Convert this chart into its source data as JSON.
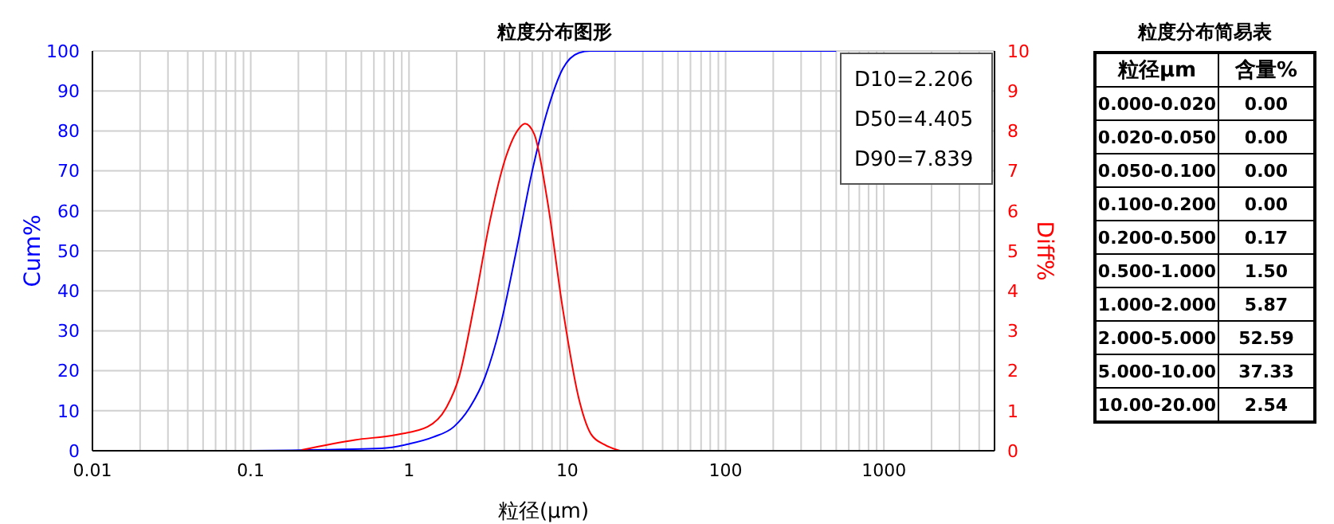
{
  "chart_data": [
    {
      "type": "line",
      "title": "粒度分布图形",
      "xlabel": "粒径(μm)",
      "ylabel": "Cum%",
      "y2label": "Diff%",
      "log": "x",
      "grid": true,
      "marker": "none",
      "line_style": "solid",
      "xlim": [
        0.01,
        5000
      ],
      "xticks": [
        0.01,
        {
          "value": 0.02,
          "label": null
        },
        {
          "value": 0.03,
          "label": null
        },
        {
          "value": 0.04,
          "label": null
        },
        {
          "value": 0.05,
          "label": null
        },
        {
          "value": 0.06,
          "label": null
        },
        {
          "value": 0.07,
          "label": null
        },
        {
          "value": 0.08,
          "label": null
        },
        {
          "value": 0.09,
          "label": null
        },
        0.1,
        {
          "value": 0.2,
          "label": null
        },
        {
          "value": 0.3,
          "label": null
        },
        {
          "value": 0.4,
          "label": null
        },
        {
          "value": 0.5,
          "label": null
        },
        {
          "value": 0.6,
          "label": null
        },
        {
          "value": 0.7,
          "label": null
        },
        {
          "value": 0.8,
          "label": null
        },
        {
          "value": 0.9,
          "label": null
        },
        1,
        {
          "value": 2,
          "label": null
        },
        {
          "value": 3,
          "label": null
        },
        {
          "value": 4,
          "label": null
        },
        {
          "value": 5,
          "label": null
        },
        {
          "value": 6,
          "label": null
        },
        {
          "value": 7,
          "label": null
        },
        {
          "value": 8,
          "label": null
        },
        {
          "value": 9,
          "label": null
        },
        10,
        {
          "value": 20,
          "label": null
        },
        {
          "value": 30,
          "label": null
        },
        {
          "value": 40,
          "label": null
        },
        {
          "value": 50,
          "label": null
        },
        {
          "value": 60,
          "label": null
        },
        {
          "value": 70,
          "label": null
        },
        {
          "value": 80,
          "label": null
        },
        {
          "value": 90,
          "label": null
        },
        100,
        {
          "value": 200,
          "label": null
        },
        {
          "value": 300,
          "label": null
        },
        {
          "value": 400,
          "label": null
        },
        {
          "value": 500,
          "label": null
        },
        {
          "value": 600,
          "label": null
        },
        {
          "value": 700,
          "label": null
        },
        {
          "value": 800,
          "label": null
        },
        {
          "value": 900,
          "label": null
        },
        1000,
        {
          "value": 2000,
          "label": null
        },
        {
          "value": 3000,
          "label": null
        },
        {
          "value": 4000,
          "label": null
        },
        {
          "value": 5000,
          "label": null
        }
      ],
      "ylim": [
        0,
        100
      ],
      "yticks": [
        0,
        10,
        20,
        30,
        40,
        50,
        60,
        70,
        80,
        90,
        100
      ],
      "y2lim": [
        0,
        10
      ],
      "y2ticks": [
        0,
        1,
        2,
        3,
        4,
        5,
        6,
        7,
        8,
        9,
        10
      ],
      "annotations": [
        "D10=2.206",
        "D50=4.405",
        "D90=7.839"
      ],
      "series": [
        {
          "color": "#0000ff",
          "x": [
            0.1,
            0.67,
            1,
            1.42,
            1.92,
            2.4,
            3.02,
            3.79,
            4.75,
            5.96,
            7.48,
            9.38,
            11.8,
            14,
            500
          ],
          "values": [
            0,
            0.6,
            1.7,
            3.4,
            6,
            10.6,
            18.4,
            31.5,
            49.8,
            69.4,
            85,
            95.6,
            99.5,
            100,
            100
          ]
        },
        {
          "color": "#ff0000",
          "axis": "y2",
          "x": [
            0.21,
            0.455,
            0.83,
            1.31,
            1.71,
            2.07,
            2.59,
            3.25,
            4.08,
            4.93,
            5.4,
            6.18,
            7.46,
            9.37,
            11.8,
            14.2,
            17.2,
            21.5
          ],
          "values": [
            0.02,
            0.27,
            0.4,
            0.6,
            1.06,
            1.84,
            3.67,
            5.76,
            7.33,
            8.05,
            8.18,
            7.92,
            6.29,
            3.54,
            1.32,
            0.4,
            0.15,
            0
          ]
        }
      ]
    },
    {
      "type": "other",
      "title": "粒度分布简易表",
      "xlabel": "粒径μm",
      "ylabel": "含量%",
      "categories": [
        "0.000-0.020",
        "0.020-0.050",
        "0.050-0.100",
        "0.100-0.200",
        "0.200-0.500",
        "0.500-1.000",
        "1.000-2.000",
        "2.000-5.000",
        "5.000-10.00",
        "10.00-20.00"
      ],
      "value_labels": [
        "0.00",
        "0.00",
        "0.00",
        "0.00",
        "0.17",
        "1.50",
        "5.87",
        "52.59",
        "37.33",
        "2.54"
      ]
    }
  ]
}
